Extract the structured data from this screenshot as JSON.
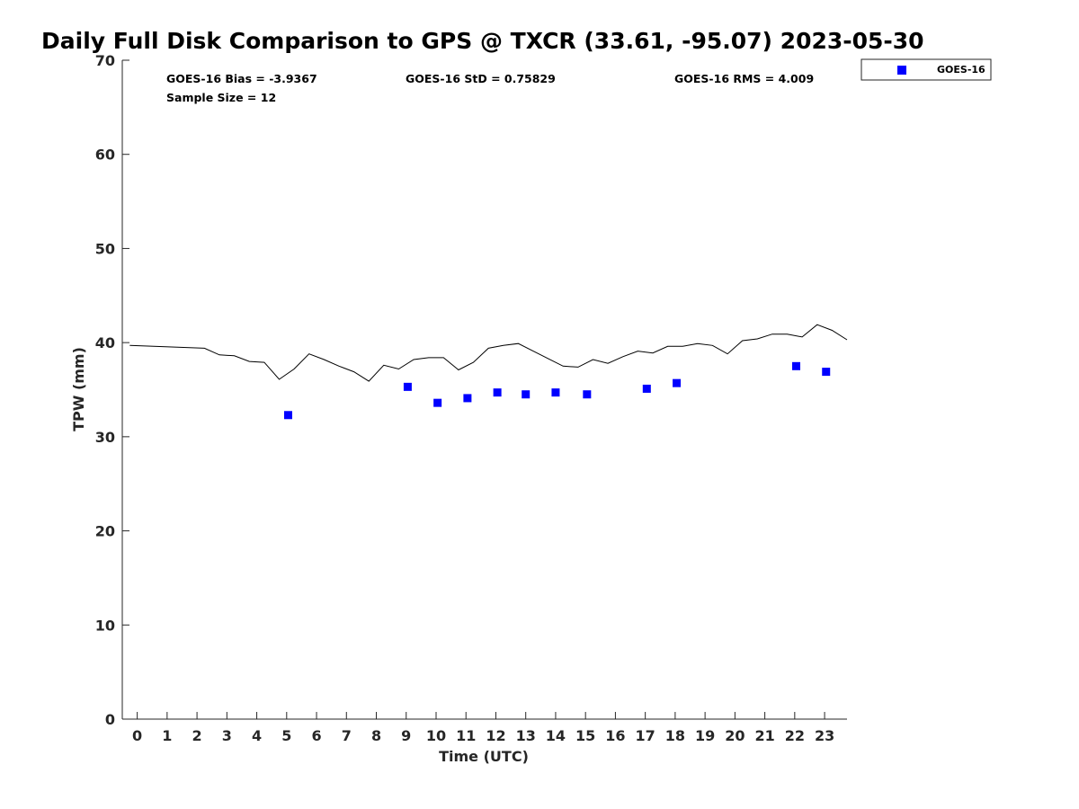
{
  "chart_data": {
    "type": "scatter",
    "title": "Daily Full Disk Comparison to GPS @ TXCR (33.61, -95.07) 2023-05-30",
    "xlabel": "Time (UTC)",
    "ylabel": "TPW (mm)",
    "xlim": [
      -0.5,
      23.75
    ],
    "ylim": [
      0,
      70
    ],
    "x_ticks": [
      "0",
      "1",
      "2",
      "3",
      "4",
      "5",
      "6",
      "7",
      "8",
      "9",
      "10",
      "11",
      "12",
      "13",
      "14",
      "15",
      "16",
      "17",
      "18",
      "19",
      "20",
      "21",
      "22",
      "23"
    ],
    "y_ticks": [
      "0",
      "10",
      "20",
      "30",
      "40",
      "50",
      "60",
      "70"
    ],
    "grid": false,
    "legend_position": "outside-top-right",
    "stats": {
      "bias": "GOES-16 Bias = -3.9367",
      "std": "GOES-16 StD = 0.75829",
      "rms": "GOES-16 RMS = 4.009",
      "sample_size": "Sample Size = 12"
    },
    "series": [
      {
        "name": "GOES-16",
        "style": "marker",
        "marker": "square",
        "color": "#0000ff",
        "x": [
          5.05,
          9.05,
          10.05,
          11.05,
          12.05,
          13.0,
          14.0,
          15.05,
          17.05,
          18.05,
          22.05,
          23.05
        ],
        "y": [
          32.3,
          35.3,
          33.6,
          34.1,
          34.7,
          34.5,
          34.7,
          34.5,
          35.1,
          35.7,
          37.5,
          36.9
        ]
      },
      {
        "style": "line",
        "color": "#000000",
        "x": [
          -0.25,
          2.25,
          2.75,
          3.25,
          3.75,
          4.25,
          4.75,
          5.25,
          5.75,
          6.25,
          6.75,
          7.25,
          7.75,
          8.25,
          8.75,
          9.25,
          9.75,
          10.25,
          10.75,
          11.25,
          11.75,
          12.25,
          12.75,
          13.25,
          13.75,
          14.25,
          14.75,
          15.25,
          15.75,
          16.25,
          16.75,
          17.25,
          17.75,
          18.25,
          18.75,
          19.25,
          19.75,
          20.25,
          20.75,
          21.25,
          21.75,
          22.25,
          22.75,
          23.25,
          23.75
        ],
        "y": [
          39.7,
          39.4,
          38.7,
          38.6,
          38.0,
          37.9,
          36.1,
          37.2,
          38.8,
          38.2,
          37.5,
          36.9,
          35.9,
          37.6,
          37.2,
          38.2,
          38.4,
          38.4,
          37.1,
          37.9,
          39.4,
          39.7,
          39.9,
          39.1,
          38.3,
          37.5,
          37.4,
          38.2,
          37.8,
          38.5,
          39.1,
          38.9,
          39.6,
          39.6,
          39.9,
          39.7,
          38.8,
          40.2,
          40.4,
          40.9,
          40.9,
          40.6,
          41.9,
          41.3,
          40.3
        ]
      }
    ]
  }
}
